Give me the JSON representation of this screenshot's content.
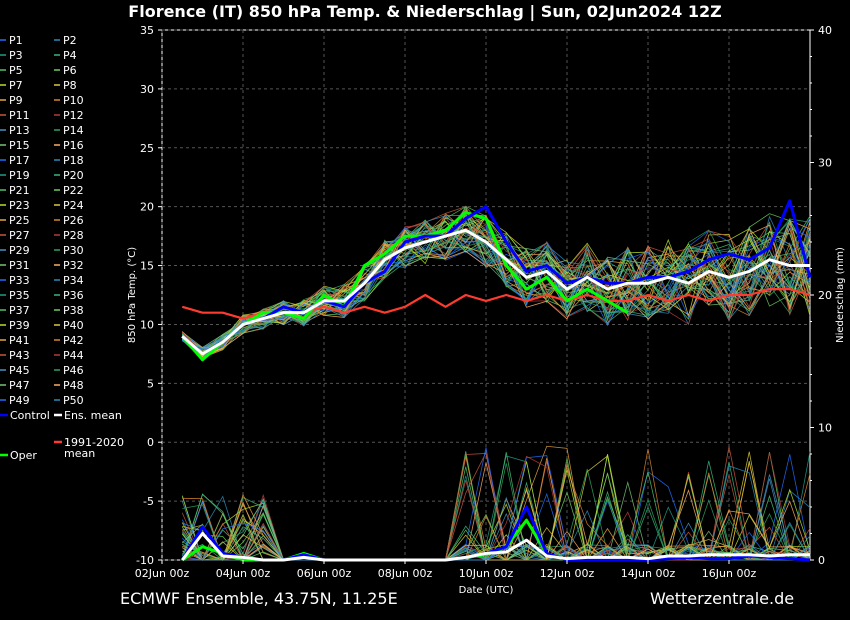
{
  "title": "Florence  (IT)  850 hPa Temp. & Niederschlag | Sun, 02Jun2024 12Z",
  "footer": {
    "left": "ECMWF Ensemble, 43.75N, 11.25E",
    "right": "Wetterzentrale.de"
  },
  "chart_data": {
    "type": "line",
    "xlabel": "Date (UTC)",
    "ylabel": "850 hPa Temp. (°C)",
    "y2label": "Niederschlag (mm)",
    "ylim": [
      -10,
      35
    ],
    "y2lim": [
      0,
      40
    ],
    "yticks": [
      -10,
      -5,
      0,
      5,
      10,
      15,
      20,
      25,
      30,
      35
    ],
    "y2ticks": [
      0,
      10,
      20,
      30,
      40
    ],
    "xlim_days": [
      0,
      16
    ],
    "xticks": [
      "02Jun 00z",
      "04Jun 00z",
      "06Jun 00z",
      "08Jun 00z",
      "10Jun 00z",
      "12Jun 00z",
      "14Jun 00z",
      "16Jun 00z"
    ],
    "grid": true,
    "legend_position": "left",
    "member_colors": [
      "#1e6fff",
      "#2b8cbe",
      "#1f9e89",
      "#35b779",
      "#4ac26b",
      "#6ccd5a",
      "#b5de2b",
      "#d8c93a",
      "#e8a33c",
      "#d9822b",
      "#c8553d",
      "#b33a3a",
      "#4393c3",
      "#2ca25f",
      "#74c476",
      "#fdae61"
    ],
    "members": [
      {
        "name": "P1"
      },
      {
        "name": "P2"
      },
      {
        "name": "P3"
      },
      {
        "name": "P4"
      },
      {
        "name": "P5"
      },
      {
        "name": "P6"
      },
      {
        "name": "P7"
      },
      {
        "name": "P8"
      },
      {
        "name": "P9"
      },
      {
        "name": "P10"
      },
      {
        "name": "P11"
      },
      {
        "name": "P12"
      },
      {
        "name": "P13"
      },
      {
        "name": "P14"
      },
      {
        "name": "P15"
      },
      {
        "name": "P16"
      },
      {
        "name": "P17"
      },
      {
        "name": "P18"
      },
      {
        "name": "P19"
      },
      {
        "name": "P20"
      },
      {
        "name": "P21"
      },
      {
        "name": "P22"
      },
      {
        "name": "P23"
      },
      {
        "name": "P24"
      },
      {
        "name": "P25"
      },
      {
        "name": "P26"
      },
      {
        "name": "P27"
      },
      {
        "name": "P28"
      },
      {
        "name": "P29"
      },
      {
        "name": "P30"
      },
      {
        "name": "P31"
      },
      {
        "name": "P32"
      },
      {
        "name": "P33"
      },
      {
        "name": "P34"
      },
      {
        "name": "P35"
      },
      {
        "name": "P36"
      },
      {
        "name": "P37"
      },
      {
        "name": "P38"
      },
      {
        "name": "P39"
      },
      {
        "name": "P40"
      },
      {
        "name": "P41"
      },
      {
        "name": "P42"
      },
      {
        "name": "P43"
      },
      {
        "name": "P44"
      },
      {
        "name": "P45"
      },
      {
        "name": "P46"
      },
      {
        "name": "P47"
      },
      {
        "name": "P48"
      },
      {
        "name": "P49"
      },
      {
        "name": "P50"
      }
    ],
    "series": [
      {
        "name": "Control",
        "color": "#0000ff",
        "x": [
          0.5,
          1,
          1.5,
          2,
          2.5,
          3,
          3.5,
          4,
          4.5,
          5,
          5.5,
          6,
          6.5,
          7,
          7.5,
          8,
          8.5,
          9,
          9.5,
          10,
          10.5,
          11,
          11.5,
          12,
          12.5,
          13,
          13.5,
          14,
          14.5,
          15,
          15.5,
          16
        ],
        "temp": [
          9,
          7.5,
          8.5,
          10,
          10.5,
          11.5,
          11,
          12,
          11.5,
          13.5,
          14.5,
          17,
          17.5,
          17.5,
          19,
          20,
          17,
          14.5,
          15,
          13.5,
          14,
          13.5,
          13.5,
          14,
          14,
          14.5,
          15.5,
          16,
          15.5,
          16.5,
          20.5,
          14
        ],
        "precip": [
          0,
          2.5,
          0.5,
          0.2,
          0,
          0,
          0.4,
          0,
          0,
          0,
          0,
          0,
          0,
          0,
          0.2,
          0.5,
          1,
          4,
          0.5,
          0,
          0,
          0,
          0,
          0,
          0.1,
          0.2,
          0.1,
          0.1,
          0.3,
          0.2,
          0.1,
          0
        ]
      },
      {
        "name": "Ens. mean",
        "color": "#ffffff",
        "x": [
          0.5,
          1,
          1.5,
          2,
          2.5,
          3,
          3.5,
          4,
          4.5,
          5,
          5.5,
          6,
          6.5,
          7,
          7.5,
          8,
          8.5,
          9,
          9.5,
          10,
          10.5,
          11,
          11.5,
          12,
          12.5,
          13,
          13.5,
          14,
          14.5,
          15,
          15.5,
          16
        ],
        "temp": [
          9,
          7.5,
          8.5,
          10,
          10.5,
          11,
          11,
          12,
          12,
          13.5,
          15.5,
          16.5,
          17,
          17.5,
          18,
          17,
          15.5,
          14,
          14.5,
          13,
          14,
          13,
          13.5,
          13.5,
          14,
          13.5,
          14.5,
          14,
          14.5,
          15.5,
          15,
          15
        ],
        "precip": [
          0,
          2,
          0.3,
          0.2,
          0,
          0,
          0.2,
          0,
          0,
          0,
          0,
          0,
          0,
          0,
          0.2,
          0.5,
          0.6,
          1.5,
          0.3,
          0.1,
          0.2,
          0.2,
          0.2,
          0.1,
          0.3,
          0.3,
          0.4,
          0.4,
          0.4,
          0.3,
          0.4,
          0.4
        ]
      },
      {
        "name": "Oper",
        "color": "#00ff00",
        "x": [
          0.5,
          1,
          1.5,
          2,
          2.5,
          3,
          3.5,
          4,
          4.5,
          5,
          5.5,
          6,
          6.5,
          7,
          7.5,
          8,
          8.5,
          9,
          9.5,
          10,
          10.5,
          11,
          11.5
        ],
        "temp": [
          9,
          7,
          8.5,
          10,
          11,
          11,
          10.5,
          12.5,
          11.5,
          15,
          16,
          17.5,
          17.5,
          18,
          19.5,
          19,
          15,
          13,
          14,
          12,
          13,
          12,
          11
        ],
        "precip": [
          0,
          1,
          0.5,
          0,
          0,
          0,
          0.5,
          0,
          0,
          0,
          0,
          0,
          0,
          0,
          0.2,
          0.4,
          1,
          3,
          0.5,
          0,
          0,
          0,
          0
        ]
      },
      {
        "name": "1991-2020 mean",
        "color": "#ff3b30",
        "x": [
          0.5,
          1,
          1.5,
          2,
          2.5,
          3,
          3.5,
          4,
          4.5,
          5,
          5.5,
          6,
          6.5,
          7,
          7.5,
          8,
          8.5,
          9,
          9.5,
          10,
          10.5,
          11,
          11.5,
          12,
          12.5,
          13,
          13.5,
          14,
          14.5,
          15,
          15.5,
          16
        ],
        "temp": [
          11.5,
          11,
          11,
          10.5,
          11,
          11,
          11,
          11.5,
          11,
          11.5,
          11,
          11.5,
          12.5,
          11.5,
          12.5,
          12,
          12.5,
          12,
          12.5,
          12,
          12.5,
          12,
          12,
          12.5,
          12,
          12.5,
          12,
          12.5,
          12.5,
          13,
          13,
          12.5
        ]
      }
    ]
  }
}
